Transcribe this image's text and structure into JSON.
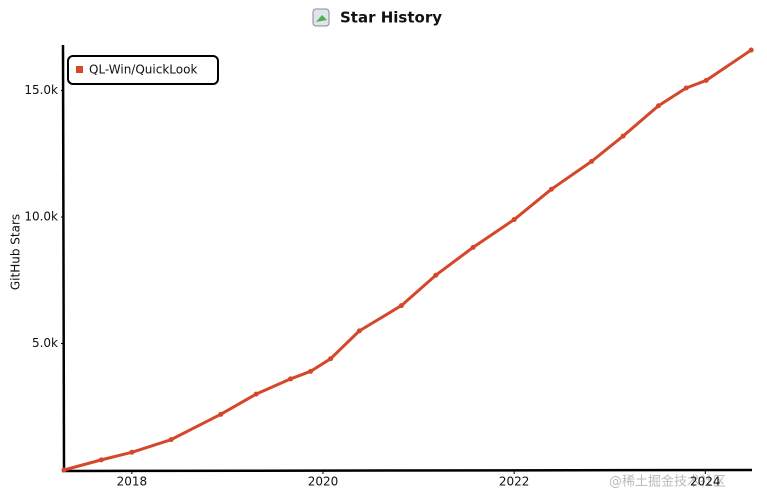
{
  "chart_data": {
    "type": "line",
    "title": "Star History",
    "ylabel": "GitHub Stars",
    "x": [
      2017.29,
      2017.68,
      2018.0,
      2018.41,
      2018.93,
      2019.3,
      2019.66,
      2019.87,
      2020.08,
      2020.38,
      2020.82,
      2021.18,
      2021.57,
      2022.0,
      2022.39,
      2022.81,
      2023.14,
      2023.51,
      2023.8,
      2024.01,
      2024.48
    ],
    "series": [
      {
        "name": "QL-Win/QuickLook",
        "color": "#d5472a",
        "values": [
          0,
          400,
          700,
          1200,
          2200,
          3000,
          3600,
          3900,
          4400,
          5500,
          6500,
          7700,
          8800,
          9900,
          11100,
          12200,
          13200,
          14400,
          15100,
          15400,
          16600
        ]
      }
    ],
    "xlim": [
      2017.29,
      2024.52
    ],
    "xticks": [
      2018,
      2020,
      2022,
      2024
    ],
    "ylim": [
      0,
      16800
    ],
    "yticks": [
      {
        "value": 5000,
        "label": "5.0k"
      },
      {
        "value": 10000,
        "label": "10.0k"
      },
      {
        "value": 15000,
        "label": "15.0k"
      }
    ],
    "legend": "top-left",
    "grid": false,
    "watermark": "@稀土掘金技术社区"
  }
}
